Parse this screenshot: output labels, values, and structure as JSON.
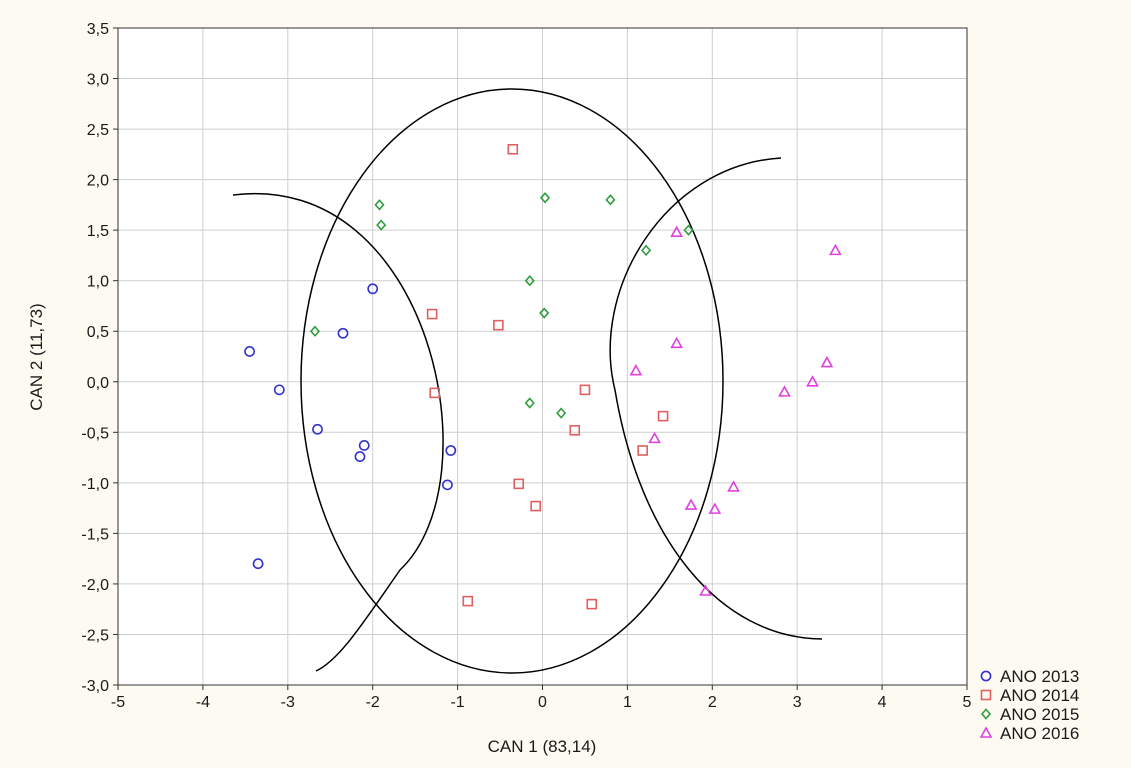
{
  "chart_data": {
    "type": "scatter",
    "xlabel": "CAN 1 (83,14)",
    "ylabel": "CAN 2 (11,73)",
    "xlim": [
      -5,
      5
    ],
    "ylim": [
      -3,
      3.5
    ],
    "xticks": [
      -5,
      -4,
      -3,
      -2,
      -1,
      0,
      1,
      2,
      3,
      4,
      5
    ],
    "yticks": [
      -3.0,
      -2.5,
      -2.0,
      -1.5,
      -1.0,
      -0.5,
      0.0,
      0.5,
      1.0,
      1.5,
      2.0,
      2.5,
      3.0,
      3.5
    ],
    "decimal_separator": ",",
    "grid": true,
    "legend_position": "bottom-right, outside plot",
    "series": [
      {
        "name": "ANO 2013",
        "marker": "circle",
        "color": "#3333cc",
        "points": [
          [
            -3.45,
            0.3
          ],
          [
            -3.1,
            -0.08
          ],
          [
            -2.65,
            -0.47
          ],
          [
            -2.35,
            0.48
          ],
          [
            -2.0,
            0.92
          ],
          [
            -2.1,
            -0.63
          ],
          [
            -2.15,
            -0.74
          ],
          [
            -1.08,
            -0.68
          ],
          [
            -1.12,
            -1.02
          ],
          [
            -3.35,
            -1.8
          ]
        ]
      },
      {
        "name": "ANO 2014",
        "marker": "square",
        "color": "#e06060",
        "points": [
          [
            -0.35,
            2.3
          ],
          [
            -1.3,
            0.67
          ],
          [
            -0.52,
            0.56
          ],
          [
            -1.27,
            -0.11
          ],
          [
            0.5,
            -0.08
          ],
          [
            1.42,
            -0.34
          ],
          [
            0.38,
            -0.48
          ],
          [
            1.18,
            -0.68
          ],
          [
            -0.28,
            -1.01
          ],
          [
            -0.08,
            -1.23
          ],
          [
            -0.88,
            -2.17
          ],
          [
            0.58,
            -2.2
          ]
        ]
      },
      {
        "name": "ANO 2015",
        "marker": "diamond",
        "color": "#2e9e3e",
        "points": [
          [
            0.03,
            1.82
          ],
          [
            0.8,
            1.8
          ],
          [
            -1.92,
            1.75
          ],
          [
            -1.9,
            1.55
          ],
          [
            1.72,
            1.5
          ],
          [
            1.22,
            1.3
          ],
          [
            -0.15,
            1.0
          ],
          [
            0.02,
            0.68
          ],
          [
            -2.68,
            0.5
          ],
          [
            -0.15,
            -0.21
          ],
          [
            0.22,
            -0.31
          ]
        ]
      },
      {
        "name": "ANO 2016",
        "marker": "triangle",
        "color": "#e040e0",
        "points": [
          [
            3.45,
            1.3
          ],
          [
            1.58,
            1.48
          ],
          [
            1.58,
            0.38
          ],
          [
            1.1,
            0.11
          ],
          [
            3.35,
            0.19
          ],
          [
            3.18,
            0.0
          ],
          [
            2.85,
            -0.1
          ],
          [
            1.32,
            -0.56
          ],
          [
            2.25,
            -1.04
          ],
          [
            1.75,
            -1.22
          ],
          [
            2.03,
            -1.26
          ],
          [
            1.92,
            -2.07
          ]
        ]
      }
    ]
  }
}
